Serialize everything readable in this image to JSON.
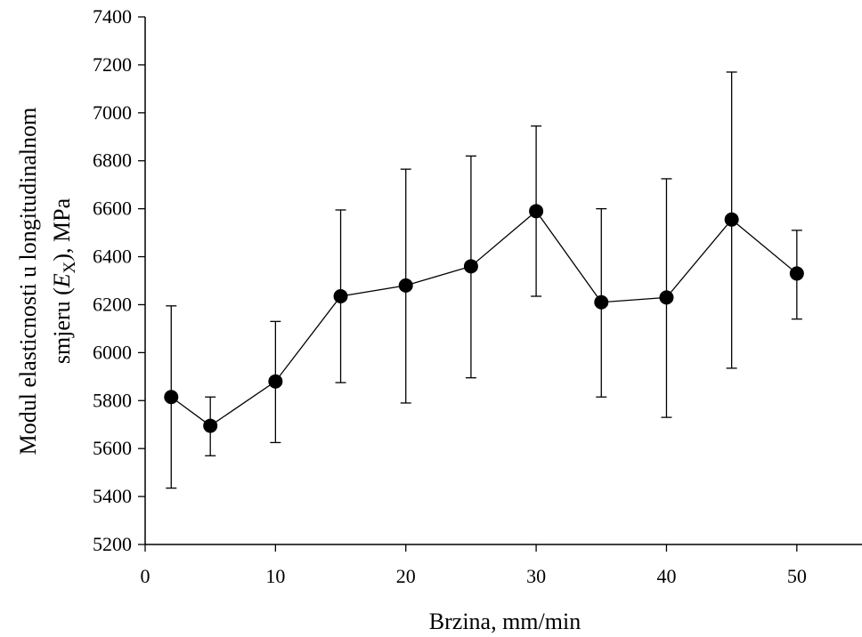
{
  "chart_data": {
    "type": "line",
    "xlabel": "Brzina, mm/min",
    "ylabel": {
      "line1": "Modul elasticnosti u longitudinalnom",
      "line2_prefix": "smjeru (",
      "line2_symbol": "E",
      "line2_subscript": "X",
      "line2_suffix": "), MPa"
    },
    "xlim": [
      0,
      55
    ],
    "ylim": [
      5200,
      7400
    ],
    "xticks": [
      0,
      10,
      20,
      30,
      40,
      50
    ],
    "yticks": [
      5200,
      5400,
      5600,
      5800,
      6000,
      6200,
      6400,
      6600,
      6800,
      7000,
      7200,
      7400
    ],
    "grid": false,
    "legend": "none",
    "marker": "filled-circle",
    "line_color": "#000000",
    "series": [
      {
        "points": [
          {
            "x": 2,
            "y": 5815,
            "err_low": 5435,
            "err_high": 6195
          },
          {
            "x": 5,
            "y": 5695,
            "err_low": 5570,
            "err_high": 5815
          },
          {
            "x": 10,
            "y": 5880,
            "err_low": 5625,
            "err_high": 6130
          },
          {
            "x": 15,
            "y": 6235,
            "err_low": 5875,
            "err_high": 6595
          },
          {
            "x": 20,
            "y": 6280,
            "err_low": 5790,
            "err_high": 6765
          },
          {
            "x": 25,
            "y": 6360,
            "err_low": 5895,
            "err_high": 6820
          },
          {
            "x": 30,
            "y": 6590,
            "err_low": 6235,
            "err_high": 6945
          },
          {
            "x": 35,
            "y": 6210,
            "err_low": 5815,
            "err_high": 6600
          },
          {
            "x": 40,
            "y": 6230,
            "err_low": 5730,
            "err_high": 6725
          },
          {
            "x": 45,
            "y": 6555,
            "err_low": 5935,
            "err_high": 7170
          },
          {
            "x": 50,
            "y": 6330,
            "err_low": 6140,
            "err_high": 6510
          }
        ]
      }
    ]
  }
}
